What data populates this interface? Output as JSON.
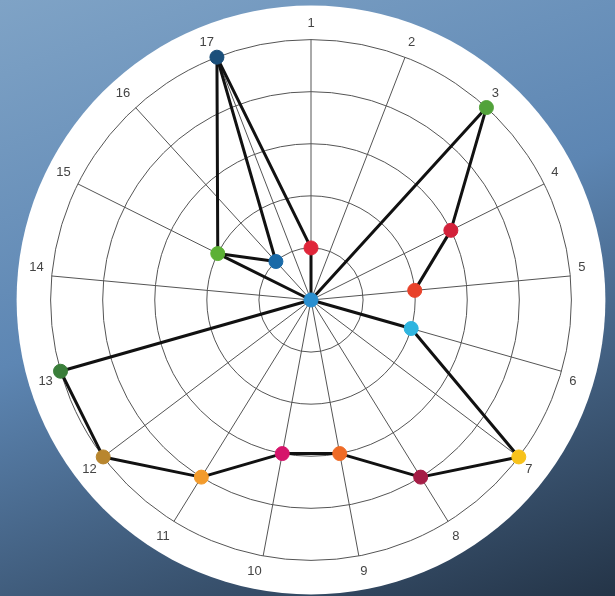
{
  "chart_data": {
    "type": "radar",
    "categories": [
      "1",
      "2",
      "3",
      "4",
      "5",
      "6",
      "7",
      "8",
      "9",
      "10",
      "11",
      "12",
      "13",
      "14",
      "15",
      "16",
      "17"
    ],
    "ylim": [
      0,
      5
    ],
    "yticks": [
      0,
      1,
      2,
      3,
      4,
      5
    ],
    "grid": true,
    "tick_labels": "x",
    "nodes": [
      {
        "category": null,
        "value": 0,
        "color": "#2a8fd0"
      },
      {
        "category": "1",
        "value": 1,
        "color": "#e0263a"
      },
      {
        "category": "17",
        "value": 5,
        "color": "#1b4f7a"
      },
      {
        "category": "16",
        "value": 1,
        "color": "#1a6aa8"
      },
      {
        "category": "15",
        "value": 2,
        "color": "#5cb035"
      },
      {
        "category": "3",
        "value": 5,
        "color": "#52a23a"
      },
      {
        "category": "4",
        "value": 3,
        "color": "#d2213a"
      },
      {
        "category": "5",
        "value": 2,
        "color": "#e8422a"
      },
      {
        "category": "6",
        "value": 2,
        "color": "#2fb5e0"
      },
      {
        "category": "7",
        "value": 5,
        "color": "#f7c21b"
      },
      {
        "category": "8",
        "value": 4,
        "color": "#a51d46"
      },
      {
        "category": "9",
        "value": 3,
        "color": "#ef6b26"
      },
      {
        "category": "10",
        "value": 3,
        "color": "#d6146b"
      },
      {
        "category": "11",
        "value": 4,
        "color": "#f39b2b"
      },
      {
        "category": "12",
        "value": 5,
        "color": "#b8862f"
      },
      {
        "category": "13",
        "value": 5,
        "color": "#3a7e3a"
      }
    ],
    "edges": [
      [
        0,
        1
      ],
      [
        1,
        2
      ],
      [
        2,
        3
      ],
      [
        2,
        4
      ],
      [
        3,
        4
      ],
      [
        0,
        4
      ],
      [
        0,
        5
      ],
      [
        5,
        6
      ],
      [
        6,
        7
      ],
      [
        0,
        8
      ],
      [
        8,
        9
      ],
      [
        9,
        10
      ],
      [
        10,
        11
      ],
      [
        11,
        12
      ],
      [
        12,
        13
      ],
      [
        13,
        14
      ],
      [
        14,
        15
      ],
      [
        15,
        0
      ]
    ]
  }
}
